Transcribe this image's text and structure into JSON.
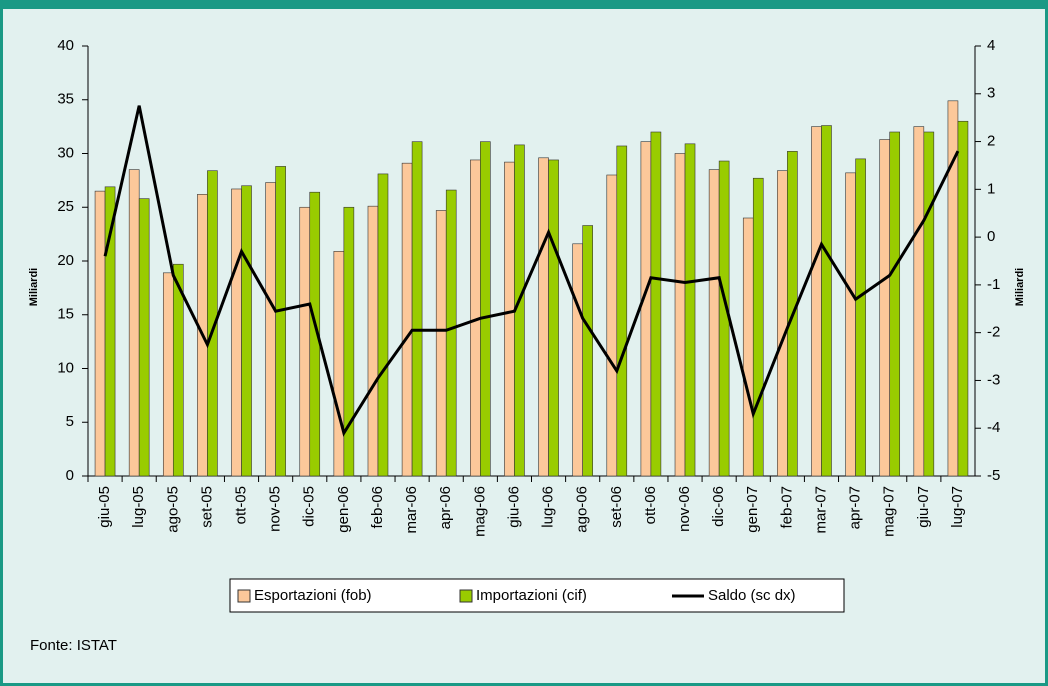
{
  "chart_data": {
    "type": "bar_line",
    "categories": [
      "giu-05",
      "lug-05",
      "ago-05",
      "set-05",
      "ott-05",
      "nov-05",
      "dic-05",
      "gen-06",
      "feb-06",
      "mar-06",
      "apr-06",
      "mag-06",
      "giu-06",
      "lug-06",
      "ago-06",
      "set-06",
      "ott-06",
      "nov-06",
      "dic-06",
      "gen-07",
      "feb-07",
      "mar-07",
      "apr-07",
      "mag-07",
      "giu-07",
      "lug-07"
    ],
    "series": [
      {
        "name": "Esportazioni (fob)",
        "color": "#fcc89a",
        "type": "bar",
        "values": [
          26.5,
          28.5,
          18.9,
          26.2,
          26.7,
          27.3,
          25.0,
          20.9,
          25.1,
          29.1,
          24.7,
          29.4,
          29.2,
          29.6,
          21.6,
          28.0,
          31.1,
          30.0,
          28.5,
          24.0,
          28.4,
          32.5,
          28.2,
          31.3,
          32.5,
          34.9
        ]
      },
      {
        "name": "Importazioni (cif)",
        "color": "#99cc00",
        "type": "bar",
        "values": [
          26.9,
          25.8,
          19.7,
          28.4,
          27.0,
          28.8,
          26.4,
          25.0,
          28.1,
          31.1,
          26.6,
          31.1,
          30.8,
          29.4,
          23.3,
          30.7,
          32.0,
          30.9,
          29.3,
          27.7,
          30.2,
          32.6,
          29.5,
          32.0,
          32.0,
          33.0
        ]
      },
      {
        "name": "Saldo (sc dx)",
        "color": "#000000",
        "type": "line",
        "axis": "y2",
        "values": [
          -0.4,
          2.75,
          -0.8,
          -2.25,
          -0.3,
          -1.55,
          -1.4,
          -4.1,
          -2.95,
          -1.95,
          -1.95,
          -1.7,
          -1.55,
          0.1,
          -1.7,
          -2.8,
          -0.85,
          -0.95,
          -0.85,
          -3.7,
          -1.9,
          -0.15,
          -1.3,
          -0.8,
          0.35,
          1.8
        ]
      }
    ],
    "ylabel": "Miliardi",
    "y2label": "Miliardi",
    "ylim": [
      0,
      40
    ],
    "yticks": [
      0,
      5,
      10,
      15,
      20,
      25,
      30,
      35,
      40
    ],
    "y2lim": [
      -5,
      4
    ],
    "y2ticks": [
      -5,
      -4,
      -3,
      -2,
      -1,
      0,
      1,
      2,
      3,
      4
    ],
    "source": "Fonte: ISTAT"
  }
}
